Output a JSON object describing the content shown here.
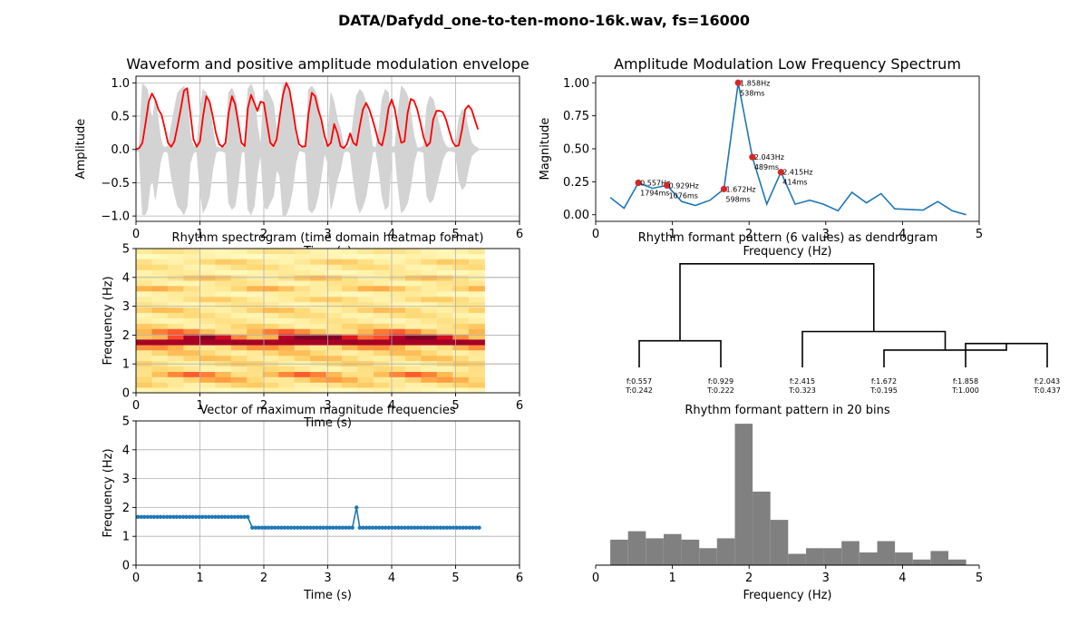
{
  "figure": {
    "suptitle": "DATA/Dafydd_one-to-ten-mono-16k.wav, fs=16000"
  },
  "colors": {
    "waveform": "#d3d3d3",
    "envelope": "#ff0000",
    "spectrum": "#1f77b4",
    "peaks": "#d62728",
    "vector": "#1f77b4",
    "histogram": "#808080",
    "grid": "#b0b0b0",
    "dendrogram": "#000000"
  },
  "chart_data": [
    {
      "id": "waveform",
      "type": "line",
      "title": "Waveform and positive amplitude modulation envelope",
      "xlabel": "Time (s)",
      "ylabel": "Amplitude",
      "xlim": [
        0,
        6
      ],
      "ylim": [
        -1.08,
        1.1
      ],
      "xticks": [
        0,
        1,
        2,
        3,
        4,
        5,
        6
      ],
      "xtick_labels": [
        "0",
        "1",
        "2",
        "3",
        "4",
        "5",
        "6"
      ],
      "yticks": [
        -1.0,
        -0.5,
        0.0,
        0.5,
        1.0
      ],
      "ytick_labels": [
        "−1.0",
        "−0.5",
        "0.0",
        "0.5",
        "1.0"
      ],
      "grid": true,
      "series": [
        {
          "kind": "waveform",
          "x": [
            0.0,
            0.05,
            0.1,
            0.14,
            0.18,
            0.22,
            0.26,
            0.3,
            0.34,
            0.38,
            0.42,
            0.46,
            0.5,
            0.55,
            0.6,
            0.65,
            0.7,
            0.75,
            0.8,
            0.85,
            0.9,
            0.95,
            1.0,
            1.05,
            1.1,
            1.15,
            1.2,
            1.25,
            1.3,
            1.35,
            1.4,
            1.45,
            1.5,
            1.55,
            1.6,
            1.65,
            1.7,
            1.75,
            1.8,
            1.85,
            1.9,
            1.95,
            2.0,
            2.05,
            2.1,
            2.15,
            2.2,
            2.25,
            2.3,
            2.35,
            2.4,
            2.45,
            2.5,
            2.55,
            2.6,
            2.65,
            2.7,
            2.75,
            2.8,
            2.85,
            2.9,
            2.95,
            3.0,
            3.05,
            3.1,
            3.15,
            3.2,
            3.25,
            3.3,
            3.35,
            3.4,
            3.45,
            3.5,
            3.55,
            3.6,
            3.65,
            3.7,
            3.75,
            3.8,
            3.85,
            3.9,
            3.95,
            4.0,
            4.05,
            4.1,
            4.15,
            4.2,
            4.25,
            4.3,
            4.35,
            4.4,
            4.45,
            4.5,
            4.55,
            4.6,
            4.65,
            4.7,
            4.75,
            4.8,
            4.85,
            4.9,
            4.95,
            5.0,
            5.05,
            5.1,
            5.15,
            5.2,
            5.25,
            5.3,
            5.35
          ],
          "upper": [
            0.02,
            0.03,
            0.98,
            0.95,
            0.9,
            0.6,
            0.45,
            0.75,
            0.5,
            0.2,
            0.05,
            0.03,
            0.05,
            0.35,
            0.6,
            0.85,
            0.9,
            0.95,
            0.85,
            0.2,
            0.05,
            0.03,
            0.6,
            0.9,
            0.85,
            0.7,
            0.3,
            0.05,
            0.02,
            0.03,
            0.05,
            0.85,
            0.92,
            0.8,
            0.5,
            0.05,
            0.03,
            0.9,
            0.98,
            0.85,
            0.35,
            0.05,
            0.85,
            0.9,
            0.8,
            0.7,
            0.3,
            0.4,
            0.98,
            0.95,
            0.85,
            0.6,
            0.2,
            0.02,
            0.03,
            0.05,
            0.9,
            0.95,
            0.88,
            0.75,
            0.4,
            0.05,
            0.2,
            0.85,
            0.7,
            0.45,
            0.3,
            0.05,
            0.02,
            0.05,
            0.45,
            0.8,
            0.9,
            0.85,
            0.7,
            0.4,
            0.05,
            0.02,
            0.3,
            0.75,
            0.9,
            0.85,
            0.05,
            0.03,
            0.55,
            0.95,
            0.9,
            0.8,
            0.55,
            0.2,
            0.02,
            0.03,
            0.05,
            0.65,
            0.8,
            0.75,
            0.55,
            0.35,
            0.15,
            0.05,
            0.02,
            0.03,
            0.05,
            0.45,
            0.6,
            0.55,
            0.3,
            0.1,
            0.05,
            0.02
          ],
          "lower": [
            -0.02,
            -0.03,
            -0.98,
            -0.98,
            -0.9,
            -0.55,
            -0.45,
            -0.75,
            -0.5,
            -0.2,
            -0.05,
            -0.03,
            -0.05,
            -0.4,
            -0.65,
            -0.85,
            -0.9,
            -0.98,
            -0.85,
            -0.2,
            -0.05,
            -0.03,
            -0.6,
            -0.95,
            -0.85,
            -0.7,
            -0.3,
            -0.05,
            -0.02,
            -0.03,
            -0.05,
            -0.8,
            -0.9,
            -0.85,
            -0.5,
            -0.05,
            -0.03,
            -0.9,
            -0.98,
            -0.85,
            -0.35,
            -0.05,
            -0.85,
            -0.9,
            -0.8,
            -0.7,
            -0.3,
            -0.4,
            -1.0,
            -0.98,
            -0.85,
            -0.6,
            -0.2,
            -0.02,
            -0.03,
            -0.05,
            -0.9,
            -0.95,
            -0.88,
            -0.7,
            -0.4,
            -0.05,
            -0.2,
            -0.9,
            -0.7,
            -0.45,
            -0.3,
            -0.05,
            -0.02,
            -0.05,
            -0.45,
            -0.8,
            -0.95,
            -0.85,
            -0.7,
            -0.4,
            -0.05,
            -0.02,
            -0.3,
            -0.7,
            -0.9,
            -0.85,
            -0.05,
            -0.03,
            -0.55,
            -0.95,
            -0.9,
            -0.8,
            -0.55,
            -0.2,
            -0.02,
            -0.03,
            -0.05,
            -0.7,
            -0.8,
            -0.75,
            -0.55,
            -0.35,
            -0.15,
            -0.05,
            -0.02,
            -0.03,
            -0.05,
            -0.45,
            -0.6,
            -0.55,
            -0.3,
            -0.1,
            -0.05,
            -0.02
          ]
        },
        {
          "kind": "envelope",
          "x": [
            0.0,
            0.05,
            0.1,
            0.15,
            0.2,
            0.25,
            0.3,
            0.35,
            0.4,
            0.45,
            0.5,
            0.55,
            0.6,
            0.65,
            0.7,
            0.75,
            0.8,
            0.85,
            0.9,
            0.95,
            1.0,
            1.05,
            1.1,
            1.15,
            1.2,
            1.25,
            1.3,
            1.35,
            1.4,
            1.45,
            1.5,
            1.55,
            1.6,
            1.65,
            1.7,
            1.75,
            1.8,
            1.85,
            1.9,
            1.95,
            2.0,
            2.05,
            2.1,
            2.15,
            2.2,
            2.25,
            2.3,
            2.35,
            2.4,
            2.45,
            2.5,
            2.55,
            2.6,
            2.65,
            2.7,
            2.75,
            2.8,
            2.85,
            2.9,
            2.95,
            3.0,
            3.05,
            3.1,
            3.15,
            3.2,
            3.25,
            3.3,
            3.35,
            3.4,
            3.45,
            3.5,
            3.55,
            3.6,
            3.65,
            3.7,
            3.75,
            3.8,
            3.85,
            3.9,
            3.95,
            4.0,
            4.05,
            4.1,
            4.15,
            4.2,
            4.25,
            4.3,
            4.35,
            4.4,
            4.45,
            4.5,
            4.55,
            4.6,
            4.65,
            4.7,
            4.75,
            4.8,
            4.85,
            4.9,
            4.95,
            5.0,
            5.05,
            5.1,
            5.15,
            5.2,
            5.25,
            5.3,
            5.35
          ],
          "y": [
            0.0,
            0.02,
            0.1,
            0.4,
            0.72,
            0.84,
            0.75,
            0.6,
            0.52,
            0.32,
            0.1,
            0.04,
            0.12,
            0.35,
            0.6,
            0.88,
            0.92,
            0.55,
            0.15,
            0.04,
            0.12,
            0.5,
            0.8,
            0.72,
            0.5,
            0.25,
            0.08,
            0.04,
            0.1,
            0.55,
            0.8,
            0.68,
            0.4,
            0.1,
            0.05,
            0.62,
            0.82,
            0.7,
            0.58,
            0.72,
            0.7,
            0.4,
            0.1,
            0.05,
            0.15,
            0.5,
            0.82,
            1.0,
            0.9,
            0.62,
            0.3,
            0.08,
            0.04,
            0.05,
            0.55,
            0.85,
            0.8,
            0.6,
            0.45,
            0.2,
            0.05,
            0.1,
            0.38,
            0.25,
            0.05,
            0.02,
            0.08,
            0.24,
            0.1,
            0.06,
            0.35,
            0.6,
            0.7,
            0.6,
            0.45,
            0.28,
            0.1,
            0.06,
            0.28,
            0.62,
            0.75,
            0.6,
            0.32,
            0.1,
            0.12,
            0.55,
            0.76,
            0.73,
            0.6,
            0.4,
            0.18,
            0.05,
            0.1,
            0.45,
            0.58,
            0.58,
            0.56,
            0.45,
            0.28,
            0.12,
            0.05,
            0.06,
            0.3,
            0.6,
            0.66,
            0.6,
            0.45,
            0.3
          ]
        }
      ]
    },
    {
      "id": "am_spectrum",
      "type": "line",
      "title": "Amplitude Modulation Low Frequency Spectrum",
      "xlabel": "Frequency (Hz)",
      "ylabel": "Magnitude",
      "xlim": [
        0,
        5
      ],
      "ylim": [
        -0.05,
        1.05
      ],
      "xticks": [
        0,
        1,
        2,
        3,
        4,
        5
      ],
      "xtick_labels": [
        "0",
        "1",
        "2",
        "3",
        "4",
        "5"
      ],
      "yticks": [
        0.0,
        0.25,
        0.5,
        0.75,
        1.0
      ],
      "ytick_labels": [
        "0.00",
        "0.25",
        "0.50",
        "0.75",
        "1.00"
      ],
      "grid": false,
      "x": [
        0.19,
        0.37,
        0.557,
        0.74,
        0.929,
        1.12,
        1.3,
        1.49,
        1.672,
        1.858,
        2.043,
        2.23,
        2.415,
        2.6,
        2.79,
        2.97,
        3.16,
        3.34,
        3.53,
        3.72,
        3.9,
        4.09,
        4.27,
        4.46,
        4.65,
        4.83
      ],
      "y": [
        0.13,
        0.05,
        0.242,
        0.2,
        0.222,
        0.1,
        0.07,
        0.11,
        0.195,
        1.0,
        0.437,
        0.08,
        0.323,
        0.08,
        0.11,
        0.08,
        0.03,
        0.17,
        0.09,
        0.16,
        0.045,
        0.04,
        0.035,
        0.1,
        0.03,
        0.0
      ],
      "peaks": [
        {
          "x": 0.557,
          "y": 0.242,
          "label1": "0.557Hz",
          "label2": "1794ms"
        },
        {
          "x": 0.929,
          "y": 0.222,
          "label1": "0.929Hz",
          "label2": "1076ms"
        },
        {
          "x": 1.672,
          "y": 0.195,
          "label1": "1.672Hz",
          "label2": "598ms"
        },
        {
          "x": 1.858,
          "y": 1.0,
          "label1": "1.858Hz",
          "label2": "538ms"
        },
        {
          "x": 2.043,
          "y": 0.437,
          "label1": "2.043Hz",
          "label2": "489ms"
        },
        {
          "x": 2.415,
          "y": 0.323,
          "label1": "2.415Hz",
          "label2": "414ms"
        }
      ]
    },
    {
      "id": "rhythm_spectrogram",
      "type": "heatmap",
      "title": "Rhythm spectrogram (time domain heatmap format)",
      "xlabel": "Time (s)",
      "ylabel": "Frequency (Hz)",
      "xlim": [
        0,
        6
      ],
      "ylim": [
        0,
        5
      ],
      "xticks": [
        0,
        1,
        2,
        3,
        4,
        5,
        6
      ],
      "xtick_labels": [
        "0",
        "1",
        "2",
        "3",
        "4",
        "5",
        "6"
      ],
      "yticks": [
        0,
        1,
        2,
        3,
        4,
        5
      ],
      "ytick_labels": [
        "0",
        "1",
        "2",
        "3",
        "4",
        "5"
      ],
      "grid": true,
      "time_extent": [
        0,
        5.45
      ],
      "freq_bins": [
        0.0,
        0.19,
        0.37,
        0.56,
        0.74,
        0.93,
        1.12,
        1.3,
        1.49,
        1.67,
        1.86,
        2.04,
        2.23,
        2.41,
        2.6,
        2.79,
        2.97,
        3.16,
        3.34,
        3.53,
        3.72,
        3.9,
        4.09,
        4.27,
        4.46,
        4.65,
        4.83
      ],
      "time_cols": 22,
      "profile": [
        0.1,
        0.3,
        0.45,
        0.6,
        0.25,
        0.3,
        0.35,
        0.35,
        0.5,
        0.95,
        1.0,
        0.6,
        0.3,
        0.2,
        0.25,
        0.35,
        0.2,
        0.3,
        0.15,
        0.4,
        0.2,
        0.35,
        0.15,
        0.25,
        0.3,
        0.1,
        0.2
      ]
    },
    {
      "id": "max_freq_vector",
      "type": "line",
      "title": "Vector of maximum magnitude frequencies",
      "xlabel": "Time (s)",
      "ylabel": "Frequency (Hz)",
      "xlim": [
        0,
        6
      ],
      "ylim": [
        0,
        5
      ],
      "xticks": [
        0,
        1,
        2,
        3,
        4,
        5,
        6
      ],
      "xtick_labels": [
        "0",
        "1",
        "2",
        "3",
        "4",
        "5",
        "6"
      ],
      "yticks": [
        0,
        1,
        2,
        3,
        4,
        5
      ],
      "ytick_labels": [
        "0",
        "1",
        "2",
        "3",
        "4",
        "5"
      ],
      "grid": true,
      "segments": [
        {
          "t0": 0.03,
          "t1": 1.78,
          "f": 1.672
        },
        {
          "t0": 1.82,
          "t1": 3.42,
          "f": 1.3
        },
        {
          "t0": 3.45,
          "t1": 3.45,
          "f": 2.0
        },
        {
          "t0": 3.5,
          "t1": 5.4,
          "f": 1.3
        }
      ],
      "step": 0.0505
    },
    {
      "id": "dendrogram",
      "type": "dendrogram",
      "title": "Rhythm formant pattern (6 values) as dendrogram",
      "leaves": [
        {
          "f": "f:0.557",
          "t": "T:0.242"
        },
        {
          "f": "f:0.929",
          "t": "T:0.222"
        },
        {
          "f": "f:2.415",
          "t": "T:0.323"
        },
        {
          "f": "f:1.672",
          "t": "T:0.195"
        },
        {
          "f": "f:1.858",
          "t": "T:1.000"
        },
        {
          "f": "f:2.043",
          "t": "T:0.437"
        }
      ],
      "links": [
        {
          "a": 4,
          "b": 5,
          "h": 0.18
        },
        {
          "a": 3,
          "b": 6,
          "h": 0.13
        },
        {
          "a": 2,
          "b": 7,
          "h": 0.27
        },
        {
          "a": 0,
          "b": 1,
          "h": 0.2
        },
        {
          "a": 9,
          "b": 8,
          "h": 0.78
        }
      ],
      "height_max": 0.82
    },
    {
      "id": "formant_histogram",
      "type": "bar",
      "title": "Rhythm formant pattern in 20 bins",
      "xlabel": "Frequency (Hz)",
      "ylabel": "",
      "xlim": [
        0,
        5
      ],
      "ylim": [
        0,
        1.02
      ],
      "xticks": [
        0,
        1,
        2,
        3,
        4,
        5
      ],
      "xtick_labels": [
        "0",
        "1",
        "2",
        "3",
        "4",
        "5"
      ],
      "bin_start": 0.19,
      "bin_width": 0.232,
      "values": [
        0.18,
        0.24,
        0.19,
        0.22,
        0.18,
        0.12,
        0.19,
        1.0,
        0.52,
        0.32,
        0.08,
        0.12,
        0.12,
        0.17,
        0.09,
        0.17,
        0.09,
        0.04,
        0.1,
        0.04
      ]
    }
  ]
}
